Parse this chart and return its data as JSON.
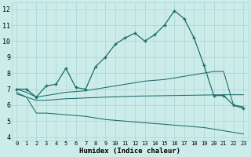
{
  "xlabel": "Humidex (Indice chaleur)",
  "bg_color": "#ccecea",
  "grid_color": "#aad4d2",
  "line_color": "#1a6b6b",
  "xlim_min": -0.5,
  "xlim_max": 23.5,
  "ylim_min": 3.8,
  "ylim_max": 12.4,
  "xticks": [
    0,
    1,
    2,
    3,
    4,
    5,
    6,
    7,
    8,
    9,
    10,
    11,
    12,
    13,
    14,
    15,
    16,
    17,
    18,
    19,
    20,
    21,
    22,
    23
  ],
  "yticks": [
    4,
    5,
    6,
    7,
    8,
    9,
    10,
    11,
    12
  ],
  "curve1_x": [
    0,
    1,
    2,
    3,
    4,
    5,
    6,
    7,
    8,
    9,
    10,
    11,
    12,
    13,
    14,
    15,
    16,
    17,
    18,
    19,
    20,
    21,
    22,
    23
  ],
  "curve1_y": [
    7.0,
    7.0,
    6.5,
    7.2,
    7.3,
    8.3,
    7.1,
    7.0,
    8.4,
    9.0,
    9.8,
    10.2,
    10.5,
    10.0,
    10.4,
    11.0,
    11.9,
    11.4,
    10.2,
    8.5,
    6.6,
    6.6,
    6.0,
    5.8
  ],
  "curve2_x": [
    0,
    1,
    2,
    3,
    4,
    5,
    6,
    7,
    8,
    9,
    10,
    11,
    12,
    13,
    14,
    15,
    16,
    17,
    18,
    19,
    20,
    21,
    22,
    23
  ],
  "curve2_y": [
    7.0,
    6.8,
    6.5,
    6.6,
    6.7,
    6.8,
    6.85,
    6.9,
    7.0,
    7.1,
    7.2,
    7.3,
    7.4,
    7.5,
    7.55,
    7.6,
    7.7,
    7.8,
    7.9,
    8.0,
    8.1,
    8.1,
    6.0,
    5.9
  ],
  "curve3_x": [
    0,
    1,
    2,
    3,
    4,
    5,
    6,
    7,
    8,
    9,
    10,
    11,
    12,
    13,
    14,
    15,
    16,
    17,
    18,
    19,
    20,
    21,
    22,
    23
  ],
  "curve3_y": [
    6.7,
    6.5,
    6.3,
    6.3,
    6.35,
    6.4,
    6.42,
    6.45,
    6.47,
    6.5,
    6.52,
    6.54,
    6.56,
    6.57,
    6.58,
    6.59,
    6.6,
    6.61,
    6.62,
    6.63,
    6.64,
    6.65,
    6.65,
    6.65
  ],
  "curve4_x": [
    0,
    1,
    2,
    3,
    4,
    5,
    6,
    7,
    8,
    9,
    10,
    11,
    12,
    13,
    14,
    15,
    16,
    17,
    18,
    19,
    20,
    21,
    22,
    23
  ],
  "curve4_y": [
    6.8,
    6.5,
    5.5,
    5.5,
    5.45,
    5.4,
    5.35,
    5.3,
    5.2,
    5.1,
    5.05,
    5.0,
    4.95,
    4.9,
    4.85,
    4.8,
    4.75,
    4.7,
    4.65,
    4.6,
    4.5,
    4.4,
    4.3,
    4.2
  ]
}
